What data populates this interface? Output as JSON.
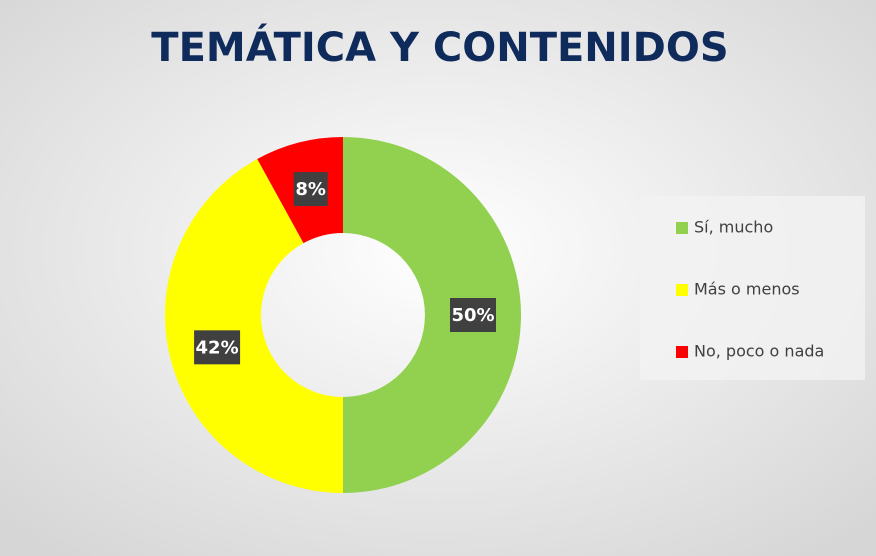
{
  "chart_data": {
    "type": "donut",
    "title": "TEMÁTICA Y CONTENIDOS",
    "categories": [
      "Sí, mucho",
      "Más o menos",
      "No, poco o nada"
    ],
    "values": [
      50,
      42,
      8
    ],
    "value_labels": [
      "50%",
      "42%",
      "8%"
    ],
    "colors": [
      "#92d050",
      "#ffff00",
      "#ff0000"
    ],
    "legend": "right"
  }
}
